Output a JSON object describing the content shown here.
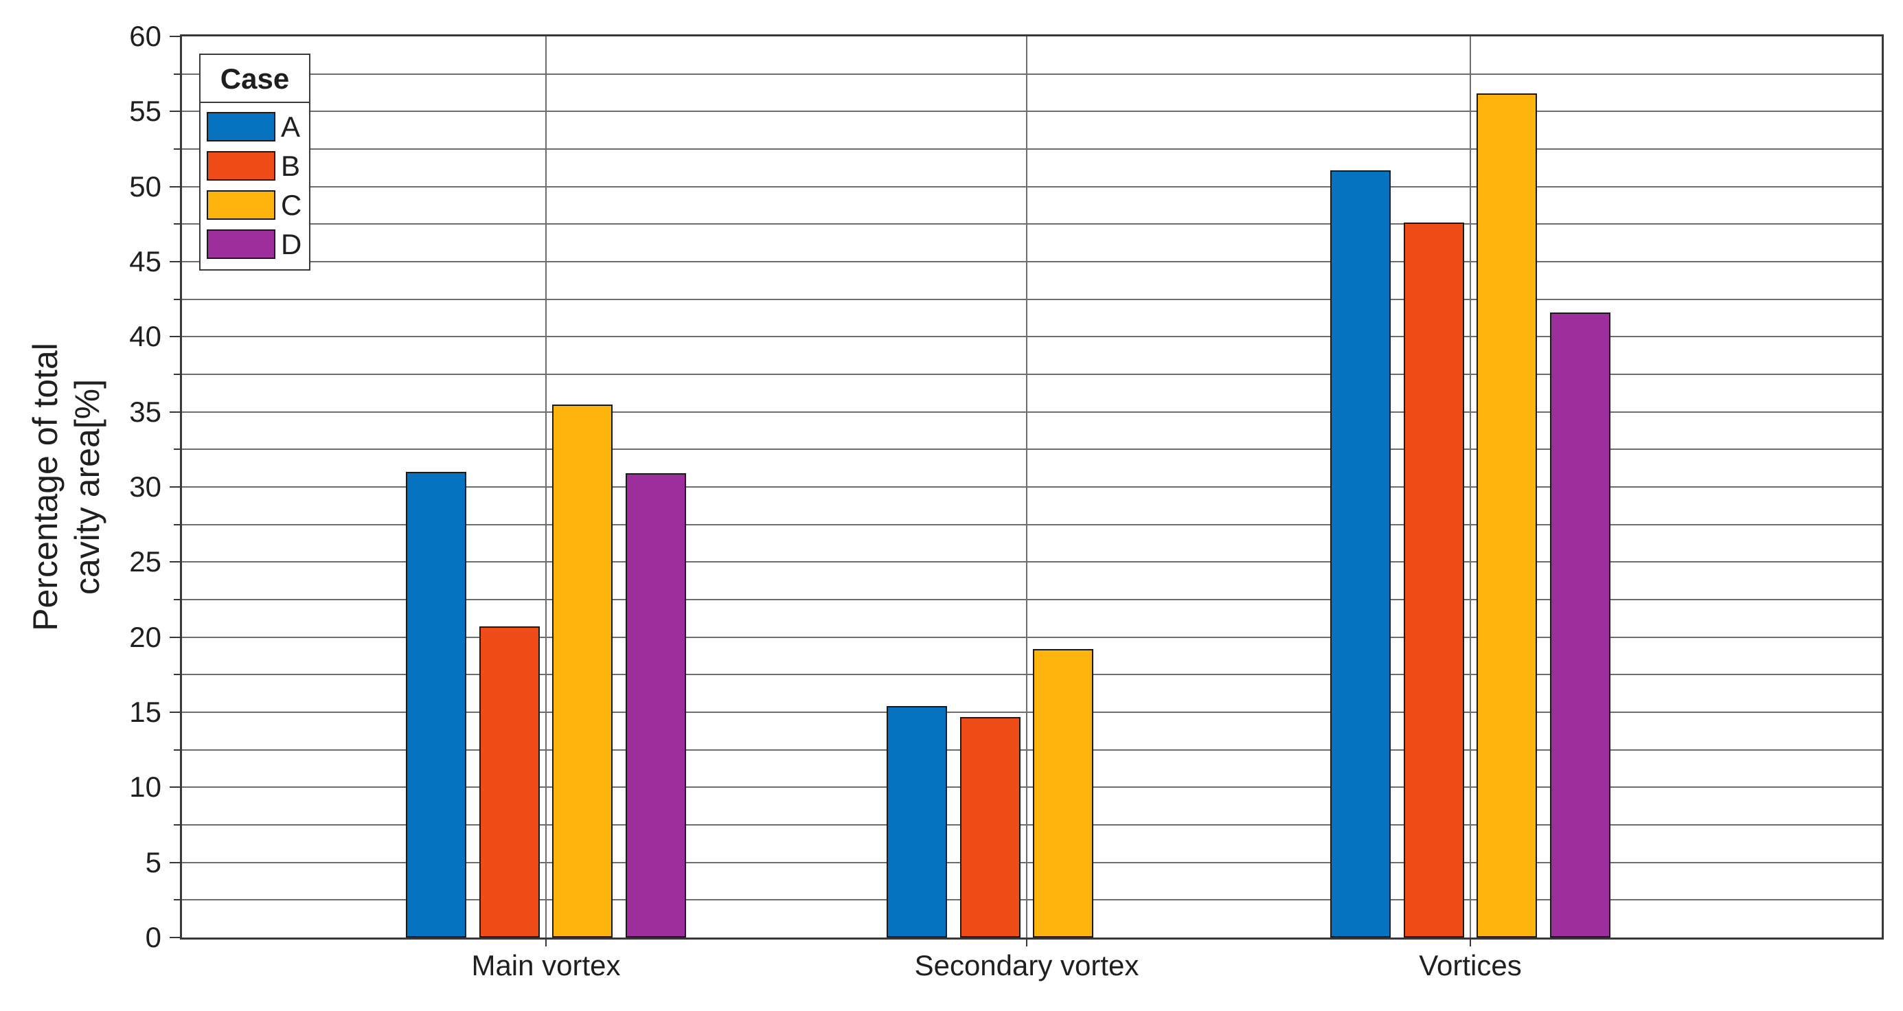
{
  "chart_data": {
    "type": "bar",
    "title": "",
    "categories": [
      "Main vortex",
      "Secondary vortex",
      "Vortices"
    ],
    "series": [
      {
        "name": "A",
        "color": "#0673C1",
        "values": [
          31.0,
          15.4,
          51.1
        ]
      },
      {
        "name": "B",
        "color": "#EE4D17",
        "values": [
          20.7,
          14.7,
          47.6
        ]
      },
      {
        "name": "C",
        "color": "#FFB30D",
        "values": [
          35.5,
          19.2,
          56.2
        ]
      },
      {
        "name": "D",
        "color": "#9C2F9C",
        "values": [
          30.9,
          0,
          41.6
        ]
      }
    ],
    "ylabel": "Percentage of total cavity area[%]",
    "ylabel_lines": [
      "Percentage of total",
      "cavity area[%]"
    ],
    "xlabel": "",
    "ylim": [
      0,
      60
    ],
    "y_major_step": 5,
    "y_minor_step": 2.5,
    "y_ticks_labeled": [
      0,
      5,
      10,
      15,
      20,
      25,
      30,
      35,
      40,
      45,
      50,
      55,
      60
    ],
    "grid": "on",
    "legend": {
      "title": "Case",
      "position": "upper-left-inside"
    },
    "bar_edge_color": "#1a1a1a",
    "axis_color": "#383838",
    "grid_color": "#6d6d6d",
    "background_color": "#ffffff"
  }
}
